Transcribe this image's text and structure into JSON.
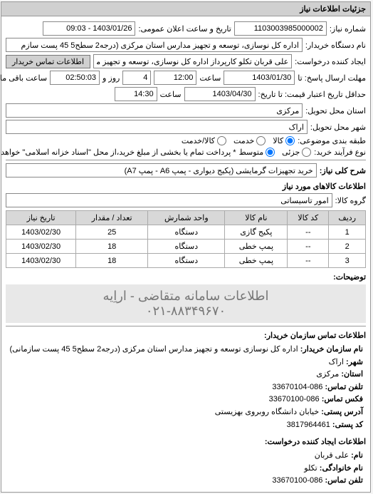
{
  "panel_title": "جزئیات اطلاعات نیاز",
  "need_number_label": "شماره نیاز:",
  "need_number": "1103003985000002",
  "datetime_label": "تاریخ و ساعت اعلان عمومی:",
  "datetime": "1403/01/26 - 09:03",
  "buyer_org_label": "نام دستگاه خریدار:",
  "buyer_org": "اداره کل نوسازی، توسعه و تجهیز مدارس استان مرکزی (درجه2 سطح5 45 پست سازم",
  "creator_label": "ایجاد کننده درخواست:",
  "creator": "علی قربان تکلو کارپرداز اداره کل نوسازی، توسعه و تجهیز مدارس استان مرکزی",
  "contact_btn": "اطلاعات تماس خریدار",
  "deadline_label": "مهلت ارسال پاسخ: تا",
  "deadline_date": "1403/01/30",
  "time_label": "ساعت",
  "deadline_time": "12:00",
  "remaining_day": "4",
  "remaining_day_label": "روز و",
  "remaining_time": "02:50:03",
  "remaining_label": "ساعت باقی مانده",
  "delivery_date_label": "حداقل تاریخ اعتبار قیمت: تا تاریخ:",
  "delivery_date": "1403/04/30",
  "delivery_time": "14:30",
  "province_label": "استان محل تحویل:",
  "province": "مرکزی",
  "city_label": "شهر محل تحویل:",
  "city": "اراک",
  "subject_class_label": "طبقه بندی موضوعی:",
  "radio_kala": "کالا",
  "radio_khedmat": "خدمت",
  "radio_kala_khedmat": "کالا/خدمت",
  "payment_type_label": "نوع فرآیند خرید:",
  "radio_partial": "جزئی",
  "radio_avg": "متوسط",
  "payment_note": "* پرداخت تمام یا بخشی از مبلغ خرید،از محل \"اسناد خزانه اسلامی\" خواهد بود.",
  "need_desc_label": "شرح کلی نیاز:",
  "need_desc": "خرید تجهیزات گرمایشی (پکیج دیواری - پمپ A6 - پمپ A7)",
  "goods_section": "اطلاعات کالاهای مورد نیاز",
  "group_label": "گروه کالا:",
  "group_value": "امور تاسیساتی",
  "table": {
    "headers": [
      "ردیف",
      "کد کالا",
      "نام کالا",
      "واحد شمارش",
      "تعداد / مقدار",
      "تاریخ نیاز"
    ],
    "rows": [
      [
        "1",
        "--",
        "پکیج گازی",
        "دستگاه",
        "25",
        "1403/02/30"
      ],
      [
        "2",
        "--",
        "پمپ خطی",
        "دستگاه",
        "18",
        "1403/02/30"
      ],
      [
        "3",
        "--",
        "پمپ خطی",
        "دستگاه",
        "18",
        "1403/02/30"
      ]
    ]
  },
  "desc_label": "توضیحات:",
  "watermark": "اطلاعات سامانه متقاضی - اراِیه",
  "phone_watermark": "۰۲۱-۸۸۳۴۹۶۷۰",
  "buyer_contact_title": "اطلاعات تماس سازمان خریدار:",
  "org_name_label": "نام سازمان خریدار:",
  "org_name": "اداره کل نوسازی توسعه و تجهیز مدارس استان مرکزی (درجه2 سطح5 45 پست سازمانی)",
  "province2_label": "شهر:",
  "province2": "اراک",
  "state_label": "استان:",
  "state": "مرکزی",
  "tel_label": "تلفن تماس:",
  "tel": "086-33670104",
  "fax_label": "فکس تماس:",
  "fax": "086-33670100",
  "addr_label": "آدرس پستی:",
  "addr": "خیابان دانشگاه روبروی بهزیستی",
  "postal_label": "کد پستی:",
  "postal": "3817964461",
  "creator_contact_title": "اطلاعات ایجاد کننده درخواست:",
  "name_label": "نام:",
  "name": "علی قربان",
  "lname_label": "نام خانوادگی:",
  "lname": "تکلو",
  "tel2_label": "تلفن تماس:",
  "tel2": "086-33670100"
}
